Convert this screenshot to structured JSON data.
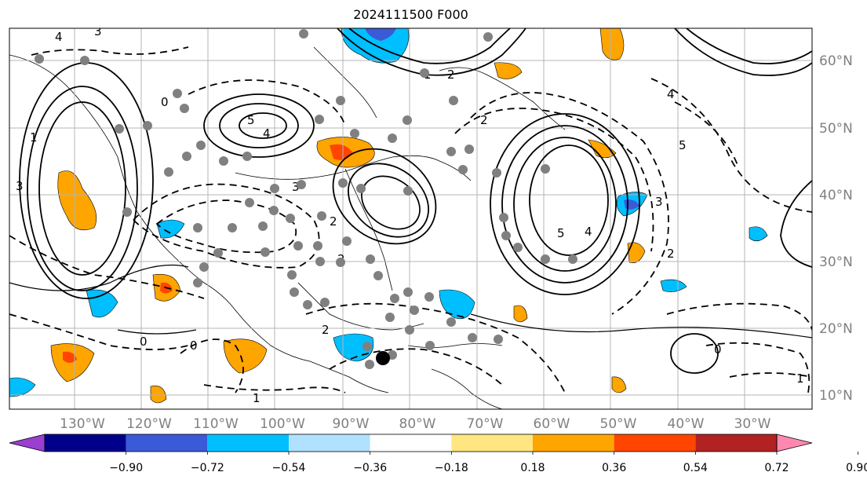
{
  "title": "2024111500 F000",
  "lon_labels": [
    "130°W",
    "120°W",
    "110°W",
    "100°W",
    "90°W",
    "80°W",
    "70°W",
    "60°W",
    "50°W",
    "40°W",
    "30°W"
  ],
  "lat_labels": [
    "60°N",
    "50°N",
    "40°N",
    "30°N",
    "20°N",
    "10°N"
  ],
  "colorbar": {
    "ticks": [
      "−0.90",
      "−0.72",
      "−0.54",
      "−0.36",
      "−0.18",
      "0.18",
      "0.36",
      "0.54",
      "0.72",
      "0.90"
    ],
    "colors": [
      "#9a3fd0",
      "#00008b",
      "#3a5ad8",
      "#00bfff",
      "#b0e2ff",
      "#ffffff",
      "#ffe680",
      "#ffa500",
      "#ff4500",
      "#b22222",
      "#ff88b0"
    ]
  },
  "contour_labels": [
    "4",
    "3",
    "0",
    "1",
    "5",
    "4",
    "3",
    "2",
    "1",
    "2",
    "4",
    "5",
    "3",
    "2",
    "4",
    "5",
    "2",
    "0",
    "0",
    "1",
    "1",
    "2",
    "0",
    "3",
    "2"
  ],
  "colors": {
    "grid": "#b4b4b4",
    "axis_label": "#808080",
    "contour": "#000000",
    "station": "#808080"
  }
}
